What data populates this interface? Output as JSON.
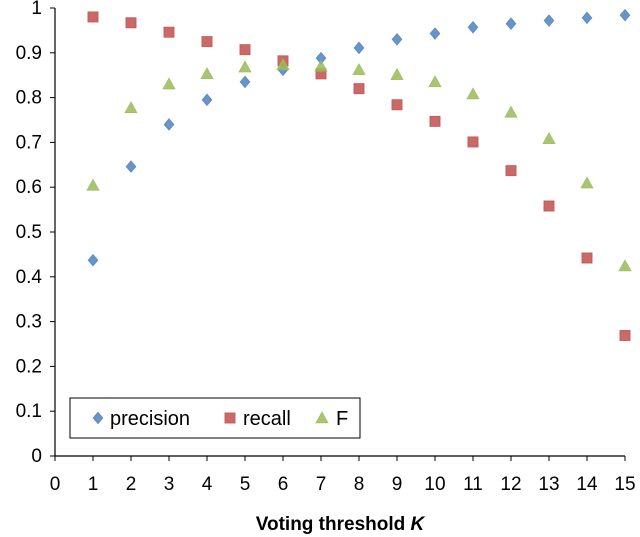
{
  "chart_data": {
    "type": "scatter",
    "title": "",
    "xlabel": "Voting threshold",
    "xlabel_var": "K",
    "ylabel": "",
    "xlim": [
      0,
      15
    ],
    "ylim": [
      0,
      1
    ],
    "x_ticks": [
      "0",
      "1",
      "2",
      "3",
      "4",
      "5",
      "6",
      "7",
      "8",
      "9",
      "10",
      "11",
      "12",
      "13",
      "14",
      "15"
    ],
    "y_ticks": [
      "0",
      "0.1",
      "0.2",
      "0.3",
      "0.4",
      "0.5",
      "0.6",
      "0.7",
      "0.8",
      "0.9",
      "1"
    ],
    "grid": false,
    "legend_position": "bottom-left",
    "x": [
      1,
      2,
      3,
      4,
      5,
      6,
      7,
      8,
      9,
      10,
      11,
      12,
      13,
      14,
      15
    ],
    "series": [
      {
        "name": "precision",
        "marker": "diamond",
        "color": "#4f81bd",
        "values": [
          0.437,
          0.646,
          0.74,
          0.795,
          0.835,
          0.862,
          0.888,
          0.911,
          0.93,
          0.943,
          0.957,
          0.965,
          0.972,
          0.978,
          0.984
        ]
      },
      {
        "name": "recall",
        "marker": "square",
        "color": "#c0504d",
        "values": [
          0.98,
          0.967,
          0.946,
          0.925,
          0.907,
          0.882,
          0.853,
          0.82,
          0.784,
          0.747,
          0.701,
          0.637,
          0.558,
          0.442,
          0.269
        ]
      },
      {
        "name": "F",
        "marker": "triangle",
        "color": "#9bbb59",
        "values": [
          0.604,
          0.777,
          0.83,
          0.853,
          0.868,
          0.873,
          0.87,
          0.862,
          0.851,
          0.835,
          0.808,
          0.767,
          0.708,
          0.609,
          0.424
        ]
      }
    ]
  }
}
